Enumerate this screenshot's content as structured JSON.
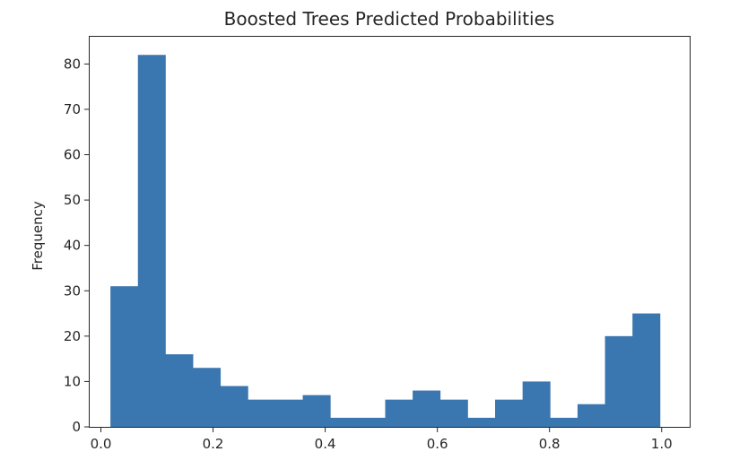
{
  "chart_data": {
    "type": "bar",
    "title": "Boosted Trees Predicted Probabilities",
    "xlabel": "",
    "ylabel": "Frequency",
    "xlim": [
      -0.02,
      1.05
    ],
    "ylim": [
      0,
      86
    ],
    "grid": false,
    "bins": [
      {
        "x0": 0.017,
        "x1": 0.066,
        "count": 31
      },
      {
        "x0": 0.066,
        "x1": 0.115,
        "count": 82
      },
      {
        "x0": 0.115,
        "x1": 0.164,
        "count": 16
      },
      {
        "x0": 0.164,
        "x1": 0.213,
        "count": 13
      },
      {
        "x0": 0.213,
        "x1": 0.262,
        "count": 9
      },
      {
        "x0": 0.262,
        "x1": 0.311,
        "count": 6
      },
      {
        "x0": 0.311,
        "x1": 0.36,
        "count": 6
      },
      {
        "x0": 0.36,
        "x1": 0.409,
        "count": 7
      },
      {
        "x0": 0.409,
        "x1": 0.458,
        "count": 2
      },
      {
        "x0": 0.458,
        "x1": 0.507,
        "count": 2
      },
      {
        "x0": 0.507,
        "x1": 0.556,
        "count": 6
      },
      {
        "x0": 0.556,
        "x1": 0.605,
        "count": 8
      },
      {
        "x0": 0.605,
        "x1": 0.654,
        "count": 6
      },
      {
        "x0": 0.654,
        "x1": 0.703,
        "count": 2
      },
      {
        "x0": 0.703,
        "x1": 0.752,
        "count": 6
      },
      {
        "x0": 0.752,
        "x1": 0.801,
        "count": 10
      },
      {
        "x0": 0.801,
        "x1": 0.85,
        "count": 2
      },
      {
        "x0": 0.85,
        "x1": 0.899,
        "count": 5
      },
      {
        "x0": 0.899,
        "x1": 0.948,
        "count": 20
      },
      {
        "x0": 0.948,
        "x1": 0.997,
        "count": 25
      }
    ],
    "xticks": [
      0.0,
      0.2,
      0.4,
      0.6,
      0.8,
      1.0
    ],
    "xtick_labels": [
      "0.0",
      "0.2",
      "0.4",
      "0.6",
      "0.8",
      "1.0"
    ],
    "yticks": [
      0,
      10,
      20,
      30,
      40,
      50,
      60,
      70,
      80
    ],
    "ytick_labels": [
      "0",
      "10",
      "20",
      "30",
      "40",
      "50",
      "60",
      "70",
      "80"
    ],
    "colors": {
      "bar": "#3a76af"
    }
  }
}
